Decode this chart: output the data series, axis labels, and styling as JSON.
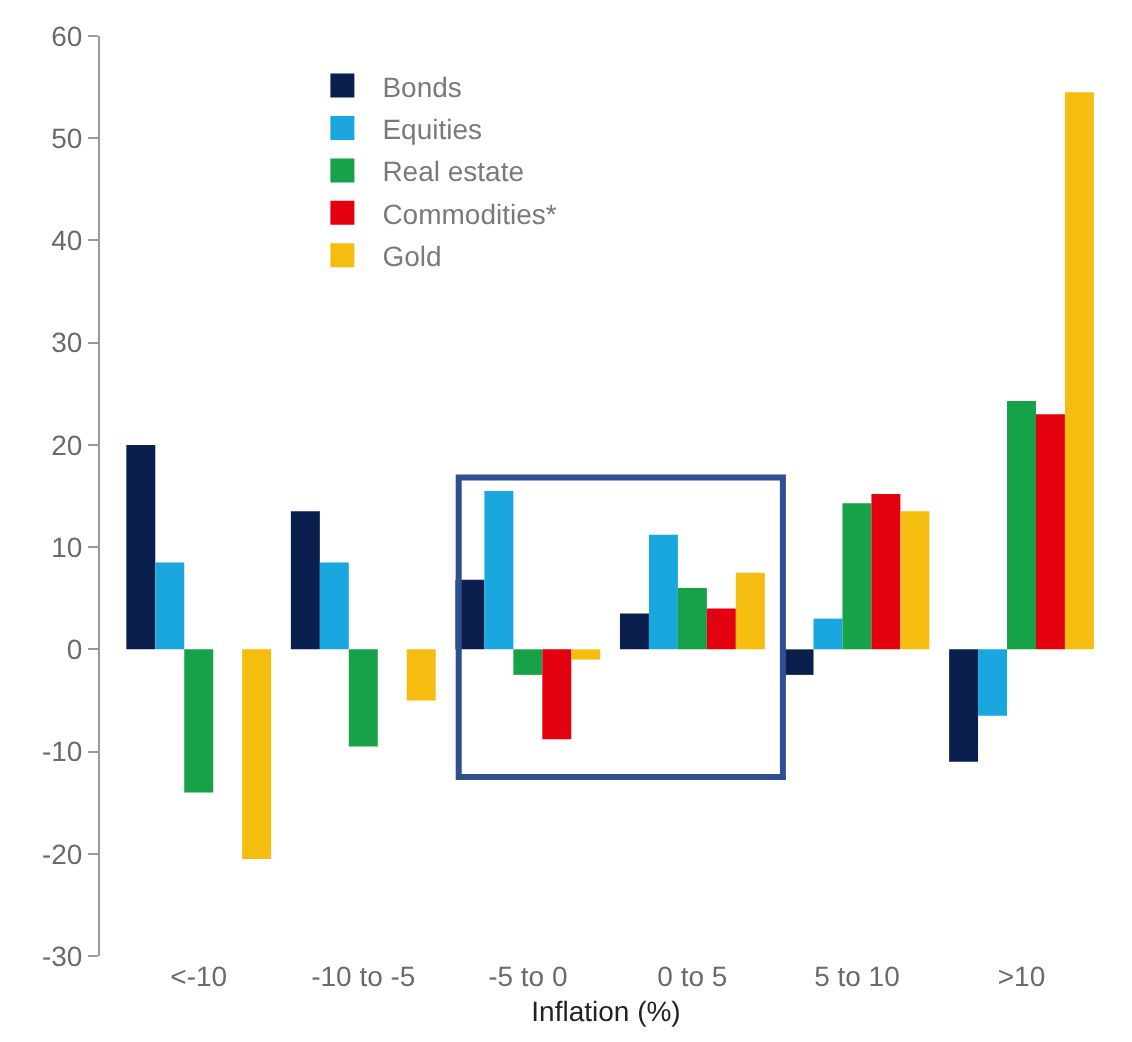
{
  "chart_data": {
    "type": "bar",
    "xlabel": "Inflation (%)",
    "categories": [
      "<-10",
      "-10 to -5",
      "-5 to 0",
      "0 to 5",
      "5 to 10",
      ">10"
    ],
    "series": [
      {
        "name": "Bonds",
        "color": "#0b1f4f",
        "values": [
          20,
          13.5,
          6.8,
          3.5,
          -2.5,
          -11
        ]
      },
      {
        "name": "Equities",
        "color": "#1aa7e0",
        "values": [
          8.5,
          8.5,
          15.5,
          11.2,
          3,
          -6.5
        ]
      },
      {
        "name": "Real estate",
        "color": "#17a24a",
        "values": [
          -14,
          -9.5,
          -2.5,
          6,
          14.3,
          24.3
        ]
      },
      {
        "name": "Commodities*",
        "color": "#e3000f",
        "values": [
          null,
          null,
          -8.8,
          4,
          15.2,
          23
        ]
      },
      {
        "name": "Gold",
        "color": "#f5bd10",
        "values": [
          -20.5,
          -5,
          -1,
          7.5,
          13.5,
          54.5
        ]
      }
    ],
    "ylim": [
      -30,
      60
    ],
    "yticks": [
      -30,
      -20,
      -10,
      0,
      10,
      20,
      30,
      40,
      50,
      60
    ],
    "legend": "top left"
  }
}
